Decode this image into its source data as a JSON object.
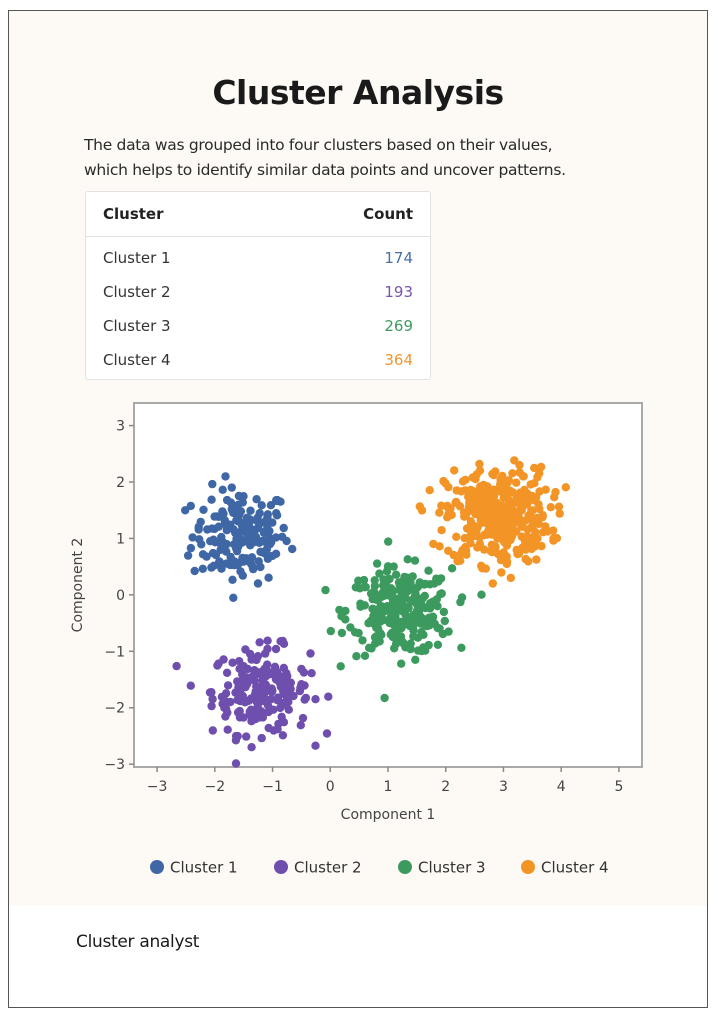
{
  "page": {
    "title": "Cluster Analysis",
    "description_line1": "The data was grouped into four clusters based on their values,",
    "description_line2": "which helps to identify similar data points and uncover patterns.",
    "footer": "Cluster analyst"
  },
  "table": {
    "headers": [
      "Cluster",
      "Count"
    ],
    "rows": [
      {
        "cluster": "Cluster 1",
        "count": "174",
        "color": "#4a6fa8"
      },
      {
        "cluster": "Cluster 2",
        "count": "193",
        "color": "#7a55b0"
      },
      {
        "cluster": "Cluster 3",
        "count": "269",
        "color": "#3f9a63"
      },
      {
        "cluster": "Cluster 4",
        "count": "364",
        "color": "#f0962f"
      }
    ]
  },
  "chart_data": {
    "type": "scatter",
    "title": "",
    "xlabel": "Component 1",
    "ylabel": "Component 2",
    "xlim": [
      -3.4,
      5.4
    ],
    "ylim": [
      -3.05,
      3.4
    ],
    "xticks": [
      -3,
      -2,
      -1,
      0,
      1,
      2,
      3,
      4,
      5
    ],
    "yticks": [
      -3,
      -2,
      -1,
      0,
      1,
      2,
      3
    ],
    "grid": false,
    "legend": "bottom-center",
    "series": [
      {
        "name": "Cluster 1",
        "color": "#3f67a6",
        "count": 174,
        "center": [
          -1.55,
          1.05
        ],
        "spread": [
          0.42,
          0.42
        ]
      },
      {
        "name": "Cluster 2",
        "color": "#6f4fae",
        "count": 193,
        "center": [
          -1.2,
          -1.7
        ],
        "spread": [
          0.42,
          0.38
        ]
      },
      {
        "name": "Cluster 3",
        "color": "#3c9a5f",
        "count": 269,
        "center": [
          1.2,
          -0.3
        ],
        "spread": [
          0.45,
          0.38
        ]
      },
      {
        "name": "Cluster 4",
        "color": "#f39426",
        "count": 364,
        "center": [
          2.9,
          1.4
        ],
        "spread": [
          0.45,
          0.42
        ]
      }
    ]
  }
}
